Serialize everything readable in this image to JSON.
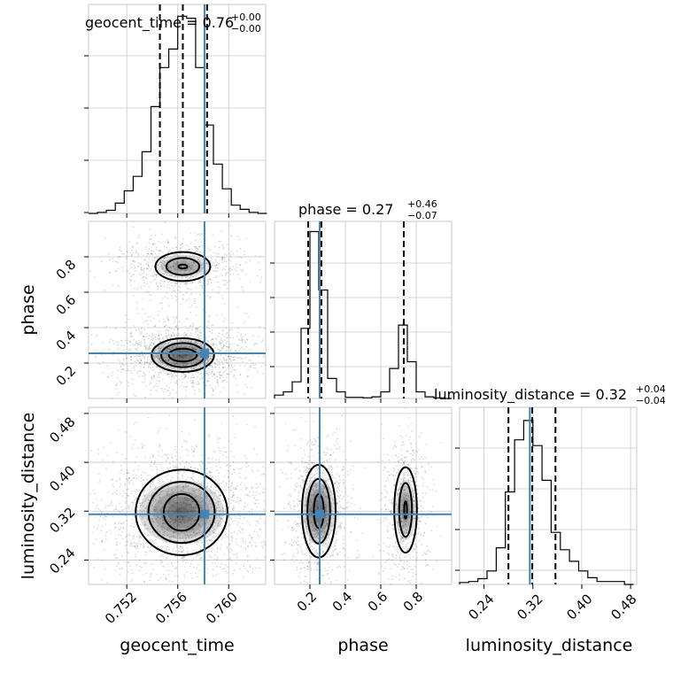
{
  "chart_data": {
    "type": "corner",
    "truth_color": "#4682b4",
    "panels": {
      "geocent_time": {
        "title": "geocent_time = 0.76",
        "title_sup": "+0.00",
        "title_sub": "−0.00",
        "xticks": [
          "0.752",
          "0.756",
          "0.760"
        ],
        "xlabel": "geocent_time"
      },
      "phase": {
        "title": "phase = 0.27",
        "title_sup": "+0.46",
        "title_sub": "−0.07",
        "ticks": [
          "0.2",
          "0.4",
          "0.6",
          "0.8"
        ],
        "xlabel": "phase",
        "ylabel": "phase"
      },
      "luminosity_distance": {
        "title": "luminosity_distance = 0.32",
        "title_sup": "+0.04",
        "title_sub": "−0.04",
        "ticks": [
          "0.24",
          "0.32",
          "0.40",
          "0.48"
        ],
        "xlabel": "luminosity_distance",
        "ylabel": "luminosity_distance"
      }
    },
    "hist_geocent_time": {
      "x_range": [
        0.749,
        0.7629
      ],
      "bins": [
        0.749,
        0.7497,
        0.7504,
        0.7511,
        0.7518,
        0.7525,
        0.7532,
        0.7539,
        0.7546,
        0.7553,
        0.756,
        0.7567,
        0.7574,
        0.7581,
        0.7588,
        0.7595,
        0.7602,
        0.7609,
        0.7616,
        0.7623,
        0.763
      ],
      "counts": [
        0,
        0.5,
        1.5,
        5,
        11,
        18,
        30,
        52,
        71,
        80,
        96,
        95,
        71,
        43,
        24,
        12,
        4,
        2,
        0.5,
        0
      ],
      "quantiles": [
        0.7546,
        0.7564,
        0.7583
      ],
      "truth": 0.7581
    },
    "hist_phase": {
      "x_range": [
        0.0,
        1.0
      ],
      "bins": [
        0.0,
        0.05,
        0.1,
        0.15,
        0.2,
        0.25,
        0.3,
        0.35,
        0.4,
        0.45,
        0.5,
        0.55,
        0.6,
        0.65,
        0.7,
        0.75,
        0.8,
        0.85,
        0.9,
        0.95,
        1.0
      ],
      "counts": [
        2,
        4,
        10,
        42,
        100,
        65,
        12,
        4,
        0.7,
        0.7,
        0.4,
        1,
        4,
        18,
        44,
        22,
        4,
        1,
        0.3,
        0
      ],
      "quantiles": [
        0.19,
        0.265,
        0.73
      ],
      "truth": 0.255
    },
    "hist_luminosity_distance": {
      "x_range": [
        0.2,
        0.49
      ],
      "bins": [
        0.2,
        0.215,
        0.23,
        0.245,
        0.26,
        0.275,
        0.29,
        0.305,
        0.32,
        0.335,
        0.35,
        0.365,
        0.38,
        0.395,
        0.41,
        0.425,
        0.44,
        0.455,
        0.47,
        0.485
      ],
      "counts": [
        1,
        1.5,
        3,
        7,
        19,
        48,
        75,
        85,
        72,
        54,
        27,
        18,
        12,
        7,
        3.5,
        1.5,
        1.5,
        1.5,
        0
      ],
      "quantiles": [
        0.28,
        0.319,
        0.357
      ],
      "truth": 0.315
    },
    "truth_values": {
      "geocent_time": 0.7581,
      "phase": 0.255,
      "luminosity_distance": 0.315
    },
    "contours": {
      "phase_vs_geocent_time": [
        {
          "cx": 0.7564,
          "cy": 0.245,
          "rx": [
            0.00245,
            0.0017,
            0.0011
          ],
          "ry": [
            0.095,
            0.068,
            0.036
          ]
        },
        {
          "cx": 0.7564,
          "cy": 0.745,
          "rx": [
            0.00215,
            0.0013,
            0.00035
          ],
          "ry": [
            0.082,
            0.048,
            0.011
          ]
        }
      ],
      "luminosity_distance_vs_geocent_time": [
        {
          "cx": 0.7563,
          "cy": 0.318,
          "rx": [
            0.0036,
            0.0026,
            0.0014
          ],
          "ry": [
            0.07,
            0.05,
            0.03
          ]
        }
      ],
      "luminosity_distance_vs_phase": [
        {
          "cx": 0.25,
          "cy": 0.32,
          "rx": [
            0.095,
            0.064,
            0.028
          ],
          "ry": [
            0.076,
            0.053,
            0.028
          ]
        },
        {
          "cx": 0.74,
          "cy": 0.322,
          "rx": [
            0.064,
            0.036,
            0.008
          ],
          "ry": [
            0.07,
            0.044,
            0.014
          ]
        }
      ]
    }
  }
}
